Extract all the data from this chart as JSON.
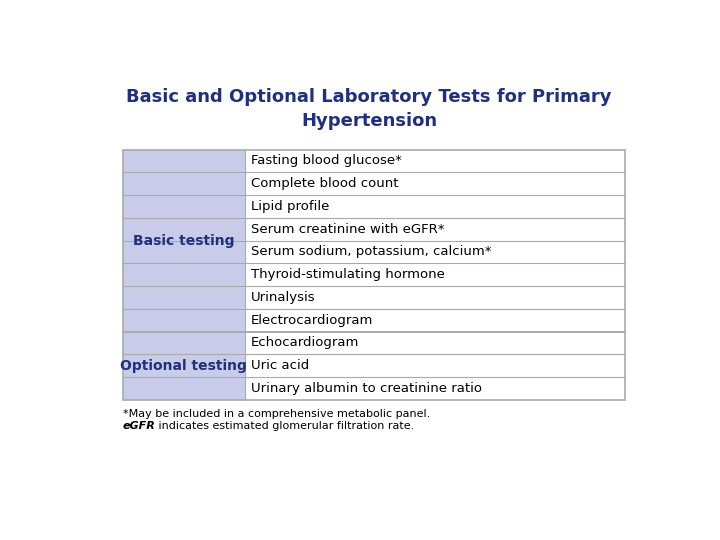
{
  "title_line1": "Basic and Optional Laboratory Tests for Primary",
  "title_line2": "Hypertension",
  "title_color": "#1F3080",
  "title_fontsize": 13,
  "bg_color": "#FFFFFF",
  "table_border_color": "#AAAAAA",
  "left_col_bg": "#C8CCE8",
  "right_col_bg": "#FFFFFF",
  "left_col_header1": "Basic testing",
  "left_col_header2": "Optional testing",
  "left_col_text_color": "#1F3080",
  "right_col_text_color": "#000000",
  "basic_rows": [
    "Fasting blood glucose*",
    "Complete blood count",
    "Lipid profile",
    "Serum creatinine with eGFR*",
    "Serum sodium, potassium, calcium*",
    "Thyroid-stimulating hormone",
    "Urinalysis",
    "Electrocardiogram"
  ],
  "optional_rows": [
    "Echocardiogram",
    "Uric acid",
    "Urinary albumin to creatinine ratio"
  ],
  "footnote1": "*May be included in a comprehensive metabolic panel.",
  "footnote2_italic": "eGFR",
  "footnote2_normal": " indicates estimated glomerular filtration rate.",
  "footnote_fontsize": 8,
  "row_fontsize": 9.5,
  "header_fontsize": 10
}
